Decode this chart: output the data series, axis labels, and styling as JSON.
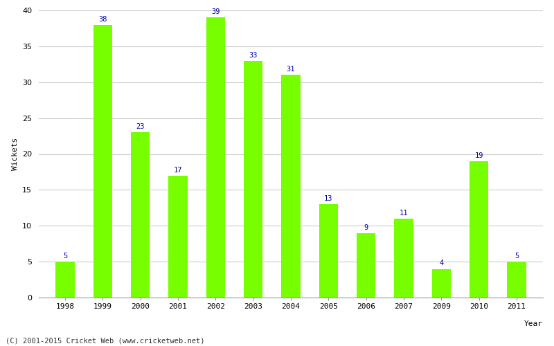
{
  "years": [
    "1998",
    "1999",
    "2000",
    "2001",
    "2002",
    "2003",
    "2004",
    "2005",
    "2006",
    "2007",
    "2009",
    "2010",
    "2011"
  ],
  "values": [
    5,
    38,
    23,
    17,
    39,
    33,
    31,
    13,
    9,
    11,
    4,
    19,
    5
  ],
  "bar_color": "#77ff00",
  "bar_edge_color": "#77ff00",
  "label_color": "#0000aa",
  "ylabel": "Wickets",
  "xlabel": "Year",
  "ylim": [
    0,
    40
  ],
  "yticks": [
    0,
    5,
    10,
    15,
    20,
    25,
    30,
    35,
    40
  ],
  "grid_color": "#cccccc",
  "background_color": "#ffffff",
  "footer": "(C) 2001-2015 Cricket Web (www.cricketweb.net)",
  "label_fontsize": 7.5,
  "axis_tick_fontsize": 8,
  "ylabel_fontsize": 8,
  "footer_fontsize": 7.5
}
